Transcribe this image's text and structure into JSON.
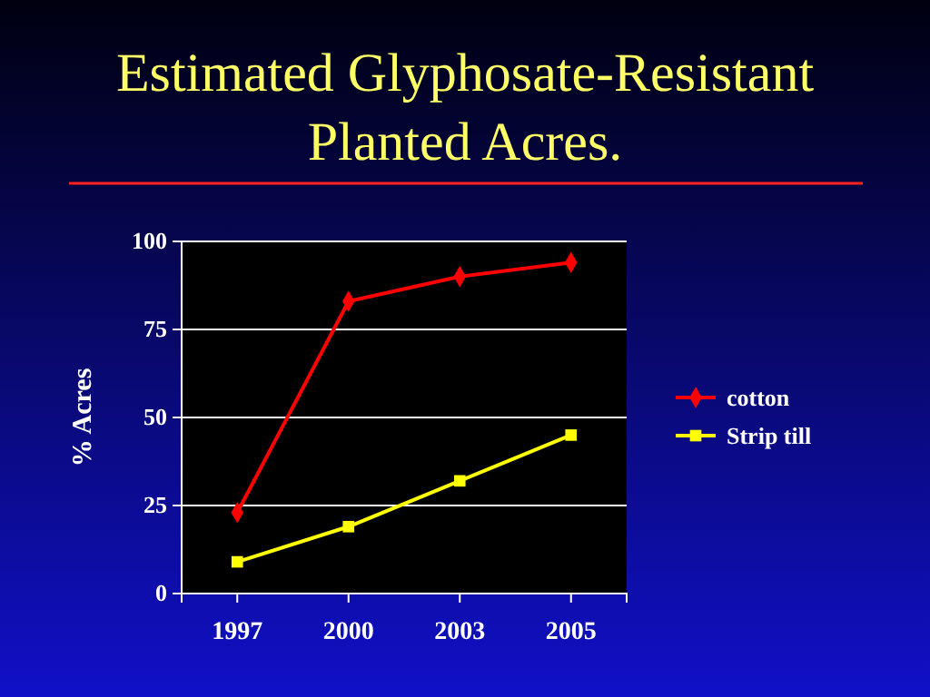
{
  "chart_data": {
    "type": "line",
    "title": "Estimated Glyphosate-Resistant Planted Acres.",
    "ylabel": "% Acres",
    "categories": [
      "1997",
      "2000",
      "2003",
      "2005"
    ],
    "series": [
      {
        "name": "cotton",
        "color": "#ff0000",
        "marker": "diamond",
        "values": [
          23,
          83,
          90,
          94
        ]
      },
      {
        "name": "Strip till",
        "color": "#ffff00",
        "marker": "square",
        "values": [
          9,
          19,
          32,
          45
        ]
      }
    ],
    "ylim": [
      0,
      100
    ],
    "yticks": [
      0,
      25,
      50,
      75,
      100
    ],
    "grid": "y",
    "legend": "right"
  }
}
